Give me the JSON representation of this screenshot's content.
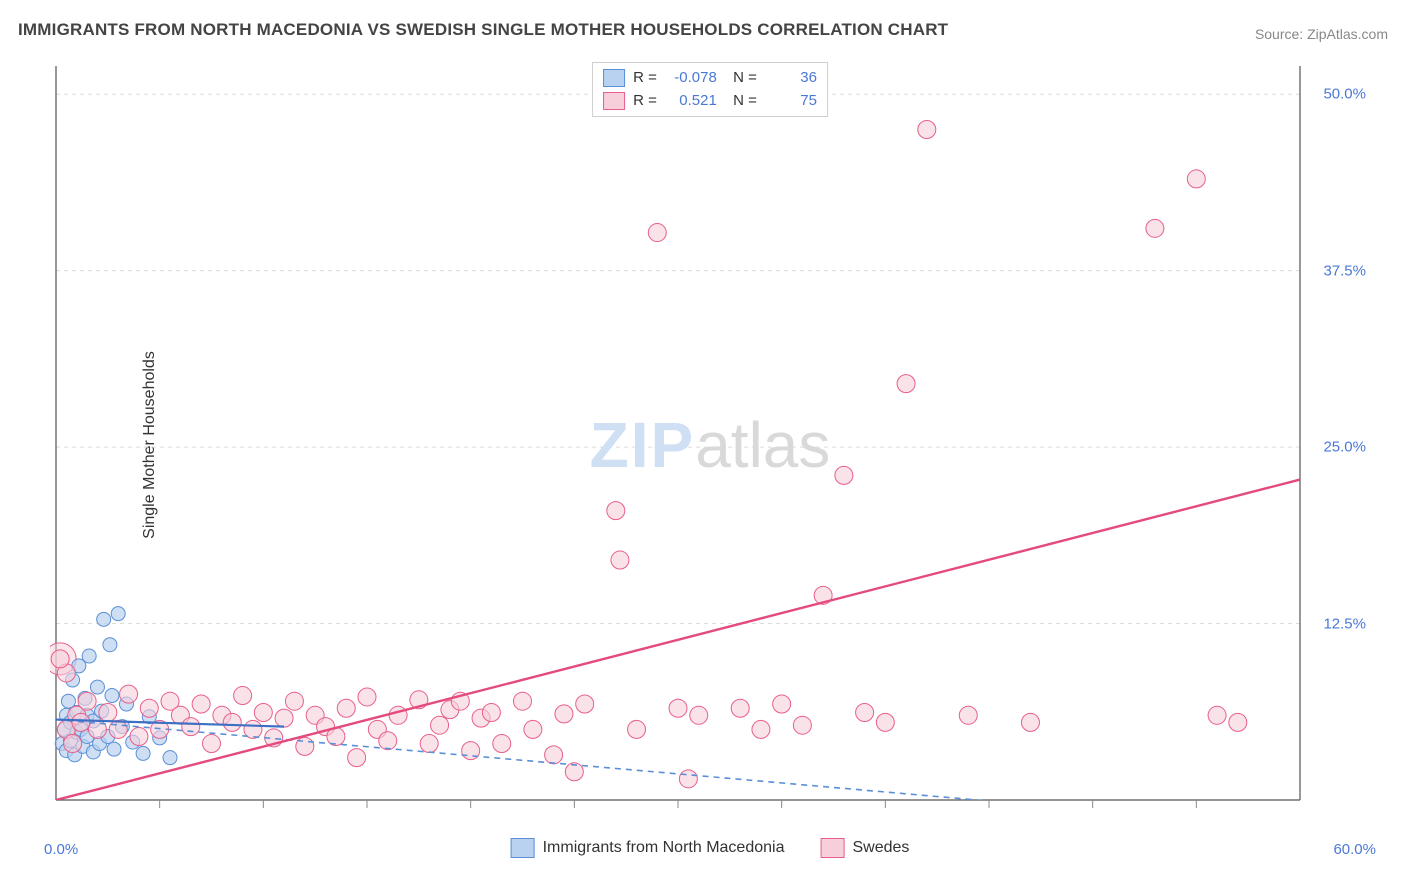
{
  "title": "IMMIGRANTS FROM NORTH MACEDONIA VS SWEDISH SINGLE MOTHER HOUSEHOLDS CORRELATION CHART",
  "source_label": "Source: ZipAtlas.com",
  "ylabel": "Single Mother Households",
  "watermark_a": "ZIP",
  "watermark_b": "atlas",
  "chart": {
    "type": "scatter",
    "xlim": [
      0,
      60
    ],
    "ylim": [
      0,
      52
    ],
    "x_ticks_minor": [
      5,
      10,
      15,
      20,
      25,
      30,
      35,
      40,
      45,
      50,
      55
    ],
    "y_gridlines": [
      12.5,
      25.0,
      37.5,
      50.0
    ],
    "y_tick_labels": [
      "12.5%",
      "25.0%",
      "37.5%",
      "50.0%"
    ],
    "x_min_label": "0.0%",
    "x_max_label": "60.0%",
    "background_color": "#ffffff",
    "axis_color": "#555555",
    "grid_color": "#dcdcdc",
    "tick_color": "#888888",
    "label_color": "#4a78d6",
    "series": [
      {
        "name": "Immigrants from North Macedonia",
        "color_fill": "#b9d2f0",
        "color_stroke": "#5b8fd8",
        "marker_opacity": 0.7,
        "marker_r": 7,
        "R": "-0.078",
        "N": "36",
        "trend": {
          "x1": 0,
          "y1": 5.7,
          "x2": 60,
          "y2": -2.0,
          "dash": "6,5",
          "width": 1.6,
          "color": "#5b8fd8"
        },
        "solid_seg": {
          "x1": 0,
          "y1": 5.7,
          "x2": 11,
          "y2": 5.2,
          "width": 2.2,
          "color": "#3d6fc4"
        },
        "points": [
          [
            0.3,
            4.0
          ],
          [
            0.4,
            5.0
          ],
          [
            0.5,
            6.0
          ],
          [
            0.5,
            3.5
          ],
          [
            0.6,
            7.0
          ],
          [
            0.7,
            4.2
          ],
          [
            0.7,
            5.5
          ],
          [
            0.8,
            8.5
          ],
          [
            0.9,
            3.2
          ],
          [
            1.0,
            6.2
          ],
          [
            1.0,
            4.8
          ],
          [
            1.1,
            9.5
          ],
          [
            1.2,
            5.0
          ],
          [
            1.3,
            3.8
          ],
          [
            1.4,
            7.2
          ],
          [
            1.5,
            4.5
          ],
          [
            1.5,
            6.0
          ],
          [
            1.6,
            10.2
          ],
          [
            1.8,
            3.4
          ],
          [
            1.8,
            5.6
          ],
          [
            2.0,
            8.0
          ],
          [
            2.1,
            4.0
          ],
          [
            2.2,
            6.3
          ],
          [
            2.3,
            12.8
          ],
          [
            2.5,
            4.5
          ],
          [
            2.6,
            11.0
          ],
          [
            2.7,
            7.4
          ],
          [
            2.8,
            3.6
          ],
          [
            3.0,
            13.2
          ],
          [
            3.2,
            5.2
          ],
          [
            3.4,
            6.8
          ],
          [
            3.7,
            4.1
          ],
          [
            4.2,
            3.3
          ],
          [
            4.5,
            5.9
          ],
          [
            5.0,
            4.4
          ],
          [
            5.5,
            3.0
          ]
        ]
      },
      {
        "name": "Swedes",
        "color_fill": "#f6cfda",
        "color_stroke": "#e85f8b",
        "marker_opacity": 0.6,
        "marker_r": 9,
        "R": "0.521",
        "N": "75",
        "trend": {
          "x1": 0,
          "y1": 0.0,
          "x2": 60,
          "y2": 22.7,
          "dash": null,
          "width": 2.4,
          "color": "#e44a7b"
        },
        "points": [
          [
            0.5,
            5.0
          ],
          [
            0.5,
            9.0
          ],
          [
            0.8,
            4.0
          ],
          [
            1.0,
            6.0
          ],
          [
            1.2,
            5.5
          ],
          [
            1.5,
            7.0
          ],
          [
            2.0,
            5.0
          ],
          [
            2.5,
            6.2
          ],
          [
            3.0,
            5.0
          ],
          [
            3.5,
            7.5
          ],
          [
            4.0,
            4.5
          ],
          [
            4.5,
            6.5
          ],
          [
            5.0,
            5.0
          ],
          [
            5.5,
            7.0
          ],
          [
            6.0,
            6.0
          ],
          [
            6.5,
            5.2
          ],
          [
            7.0,
            6.8
          ],
          [
            7.5,
            4.0
          ],
          [
            8.0,
            6.0
          ],
          [
            8.5,
            5.5
          ],
          [
            9.0,
            7.4
          ],
          [
            9.5,
            5.0
          ],
          [
            10.0,
            6.2
          ],
          [
            10.5,
            4.4
          ],
          [
            11.0,
            5.8
          ],
          [
            11.5,
            7.0
          ],
          [
            12.0,
            3.8
          ],
          [
            12.5,
            6.0
          ],
          [
            13.0,
            5.2
          ],
          [
            13.5,
            4.5
          ],
          [
            14.0,
            6.5
          ],
          [
            14.5,
            3.0
          ],
          [
            15.0,
            7.3
          ],
          [
            15.5,
            5.0
          ],
          [
            16.0,
            4.2
          ],
          [
            16.5,
            6.0
          ],
          [
            17.5,
            7.1
          ],
          [
            18.0,
            4.0
          ],
          [
            18.5,
            5.3
          ],
          [
            19.0,
            6.4
          ],
          [
            19.5,
            7.0
          ],
          [
            20.0,
            3.5
          ],
          [
            20.5,
            5.8
          ],
          [
            21.0,
            6.2
          ],
          [
            21.5,
            4.0
          ],
          [
            22.5,
            7.0
          ],
          [
            23.0,
            5.0
          ],
          [
            24.0,
            3.2
          ],
          [
            24.5,
            6.1
          ],
          [
            25.0,
            2.0
          ],
          [
            25.5,
            6.8
          ],
          [
            27.0,
            20.5
          ],
          [
            27.2,
            17.0
          ],
          [
            28.0,
            5.0
          ],
          [
            29.0,
            40.2
          ],
          [
            30.0,
            6.5
          ],
          [
            30.5,
            1.5
          ],
          [
            31.0,
            6.0
          ],
          [
            33.0,
            6.5
          ],
          [
            34.0,
            5.0
          ],
          [
            35.0,
            6.8
          ],
          [
            36.0,
            5.3
          ],
          [
            37.0,
            14.5
          ],
          [
            38.0,
            23.0
          ],
          [
            39.0,
            6.2
          ],
          [
            40.0,
            5.5
          ],
          [
            41.0,
            29.5
          ],
          [
            42.0,
            47.5
          ],
          [
            44.0,
            6.0
          ],
          [
            47.0,
            5.5
          ],
          [
            53.0,
            40.5
          ],
          [
            55.0,
            44.0
          ],
          [
            56.0,
            6.0
          ],
          [
            57.0,
            5.5
          ],
          [
            0.2,
            10.0
          ]
        ],
        "big_points": [
          [
            0.2,
            10.0,
            16
          ]
        ]
      }
    ],
    "legend": {
      "series1_swatch_fill": "#b9d2f0",
      "series1_swatch_stroke": "#5b8fd8",
      "series1_label": "Immigrants from North Macedonia",
      "series2_swatch_fill": "#f6cfda",
      "series2_swatch_stroke": "#e85f8b",
      "series2_label": "Swedes"
    }
  }
}
